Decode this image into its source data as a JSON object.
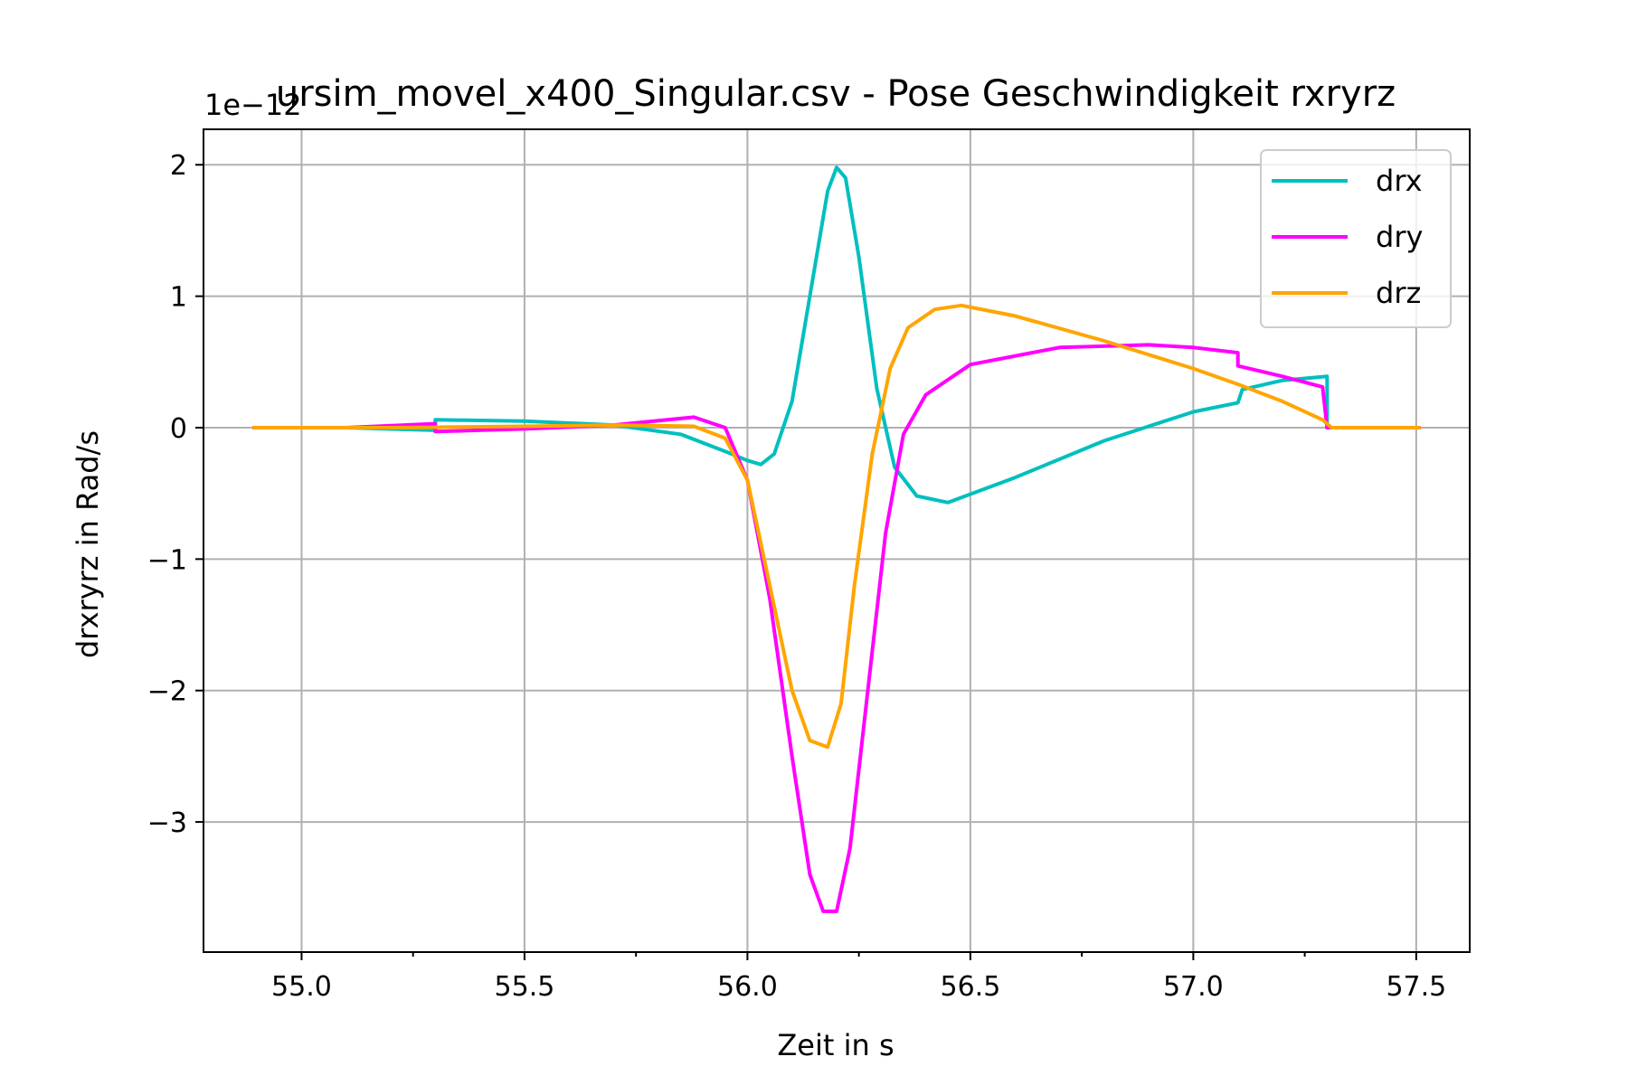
{
  "chart_data": {
    "type": "line",
    "title": "ursim_movel_x400_Singular.csv - Pose Geschwindigkeit rxryrz",
    "xlabel": "Zeit in s",
    "ylabel": "drxryrz in Rad/s",
    "offset_text": "1e−12",
    "scale_factor": 1e-12,
    "xlim": [
      54.78,
      57.62
    ],
    "ylim": [
      -3.99,
      2.27
    ],
    "xticks": [
      55.0,
      55.5,
      56.0,
      56.5,
      57.0,
      57.5
    ],
    "xtick_labels": [
      "55.0",
      "55.5",
      "56.0",
      "56.5",
      "57.0",
      "57.5"
    ],
    "xminor_ticks": [
      55.25,
      55.75,
      56.25,
      56.75,
      57.25
    ],
    "yticks": [
      -3,
      -2,
      -1,
      0,
      1,
      2
    ],
    "ytick_labels": [
      "−3",
      "−2",
      "−1",
      "0",
      "1",
      "2"
    ],
    "grid": true,
    "legend_position": "top-right",
    "series": [
      {
        "name": "drx",
        "color": "#00bfbf",
        "x": [
          54.89,
          55.1,
          55.3,
          55.3,
          55.5,
          55.7,
          55.85,
          55.95,
          56.0,
          56.03,
          56.06,
          56.1,
          56.14,
          56.18,
          56.2,
          56.22,
          56.25,
          56.29,
          56.33,
          56.38,
          56.45,
          56.6,
          56.8,
          57.0,
          57.1,
          57.11,
          57.2,
          57.3,
          57.3,
          57.51
        ],
        "y": [
          0.0,
          0.0,
          -0.02,
          0.06,
          0.05,
          0.02,
          -0.05,
          -0.18,
          -0.25,
          -0.28,
          -0.2,
          0.2,
          1.0,
          1.8,
          1.98,
          1.9,
          1.3,
          0.3,
          -0.3,
          -0.52,
          -0.57,
          -0.38,
          -0.1,
          0.12,
          0.19,
          0.29,
          0.36,
          0.39,
          0.0,
          0.0
        ]
      },
      {
        "name": "dry",
        "color": "#ff00ff",
        "x": [
          54.89,
          55.1,
          55.3,
          55.3,
          55.5,
          55.7,
          55.88,
          55.95,
          56.0,
          56.05,
          56.1,
          56.14,
          56.17,
          56.2,
          56.23,
          56.27,
          56.31,
          56.35,
          56.4,
          56.5,
          56.7,
          56.9,
          57.0,
          57.1,
          57.1,
          57.2,
          57.29,
          57.3,
          57.51
        ],
        "y": [
          0.0,
          0.0,
          0.03,
          -0.03,
          -0.01,
          0.02,
          0.08,
          0.0,
          -0.4,
          -1.3,
          -2.5,
          -3.4,
          -3.68,
          -3.68,
          -3.2,
          -2.0,
          -0.8,
          -0.05,
          0.25,
          0.48,
          0.61,
          0.63,
          0.61,
          0.57,
          0.47,
          0.39,
          0.31,
          0.0,
          0.0
        ]
      },
      {
        "name": "drz",
        "color": "#ffa500",
        "x": [
          54.89,
          55.2,
          55.5,
          55.7,
          55.88,
          55.95,
          56.0,
          56.05,
          56.1,
          56.14,
          56.18,
          56.21,
          56.24,
          56.28,
          56.32,
          56.36,
          56.42,
          56.48,
          56.6,
          56.8,
          57.0,
          57.1,
          57.2,
          57.29,
          57.31,
          57.51
        ],
        "y": [
          0.0,
          0.0,
          0.01,
          0.02,
          0.01,
          -0.08,
          -0.4,
          -1.2,
          -2.0,
          -2.38,
          -2.43,
          -2.1,
          -1.2,
          -0.2,
          0.45,
          0.76,
          0.9,
          0.93,
          0.85,
          0.66,
          0.45,
          0.33,
          0.2,
          0.06,
          0.0,
          0.0
        ]
      }
    ]
  }
}
